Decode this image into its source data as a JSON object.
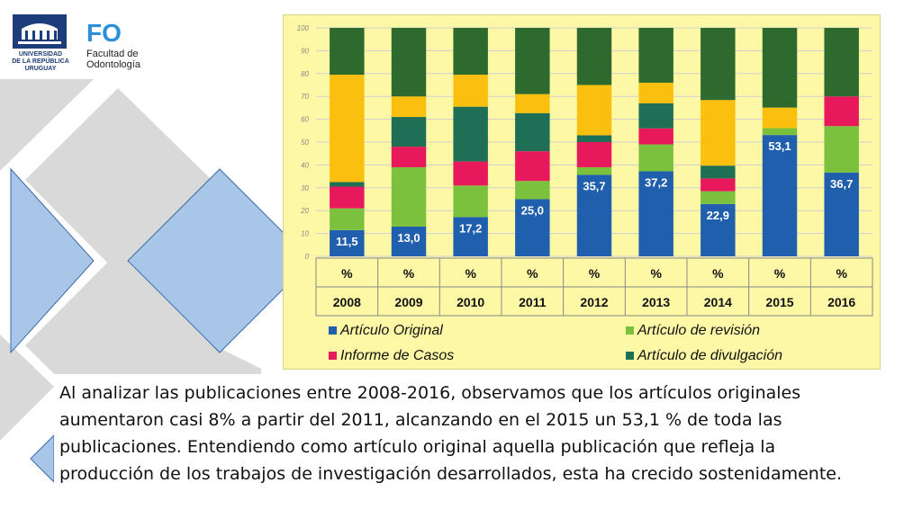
{
  "logos": {
    "university_lines": [
      "UNIVERSIDAD",
      "DE LA REPÚBLICA",
      "URUGUAY"
    ],
    "faculty_mark": "FO",
    "faculty_lines": [
      "Facultad de",
      "Odontología"
    ]
  },
  "colors": {
    "original": "#1f5fae",
    "revision": "#7cc13e",
    "casos": "#e8185c",
    "divulgacion": "#1e6f55",
    "otros_yellow": "#fbbf10",
    "otros_darkgreen": "#2e6a2e",
    "chart_bg": "#fdf8a6",
    "deco_gray": "#d9d9d9",
    "deco_blue": "#a7c6e8"
  },
  "chart_data": {
    "type": "bar",
    "stacked": true,
    "categories": [
      "2008",
      "2009",
      "2010",
      "2011",
      "2012",
      "2013",
      "2014",
      "2015",
      "2016"
    ],
    "category_unit": "%",
    "ylim": [
      0,
      100
    ],
    "yticks": [
      0,
      10,
      20,
      30,
      40,
      50,
      60,
      70,
      80,
      90,
      100
    ],
    "grid": true,
    "legend_position": "bottom",
    "series": [
      {
        "name": "Artículo Original",
        "color": "#1f5fae",
        "values": [
          11.5,
          13.0,
          17.2,
          25.0,
          35.7,
          37.2,
          22.9,
          53.1,
          36.7
        ],
        "labels": [
          "11,5",
          "13,0",
          "17,2",
          "25,0",
          "35,7",
          "37,2",
          "22,9",
          "53,1",
          "36,7"
        ]
      },
      {
        "name": "Artículo de revisión",
        "color": "#7cc13e",
        "values": [
          9.5,
          26.0,
          13.8,
          8.0,
          3.3,
          11.8,
          5.6,
          3.0,
          20.3
        ]
      },
      {
        "name": "Informe de Casos",
        "color": "#e8185c",
        "values": [
          9.5,
          9.0,
          10.5,
          13.0,
          11.0,
          7.0,
          5.6,
          0,
          13.0
        ]
      },
      {
        "name": "Artículo de divulgación",
        "color": "#1e6f55",
        "values": [
          2.0,
          13.0,
          24.0,
          16.7,
          3.0,
          11.0,
          5.6,
          0,
          0
        ]
      },
      {
        "name": "",
        "color": "#fbbf10",
        "values": [
          47.0,
          9.0,
          14.0,
          8.3,
          22.0,
          9.0,
          28.7,
          9.0,
          0
        ]
      },
      {
        "name": "",
        "color": "#2e6a2e",
        "values": [
          20.5,
          30.0,
          20.5,
          29.0,
          25.0,
          24.0,
          31.6,
          34.9,
          30.0
        ]
      }
    ]
  },
  "caption": {
    "text": "Al analizar las publicaciones entre 2008-2016, observamos que los artículos originales aumentaron casi 8% a partir del 2011, alcanzando en el 2015 un 53,1 % de toda las publicaciones. Entendiendo como artículo original aquella publicación que refleja la producción de los trabajos de investigación desarrollados, esta ha crecido sostenidamente."
  }
}
